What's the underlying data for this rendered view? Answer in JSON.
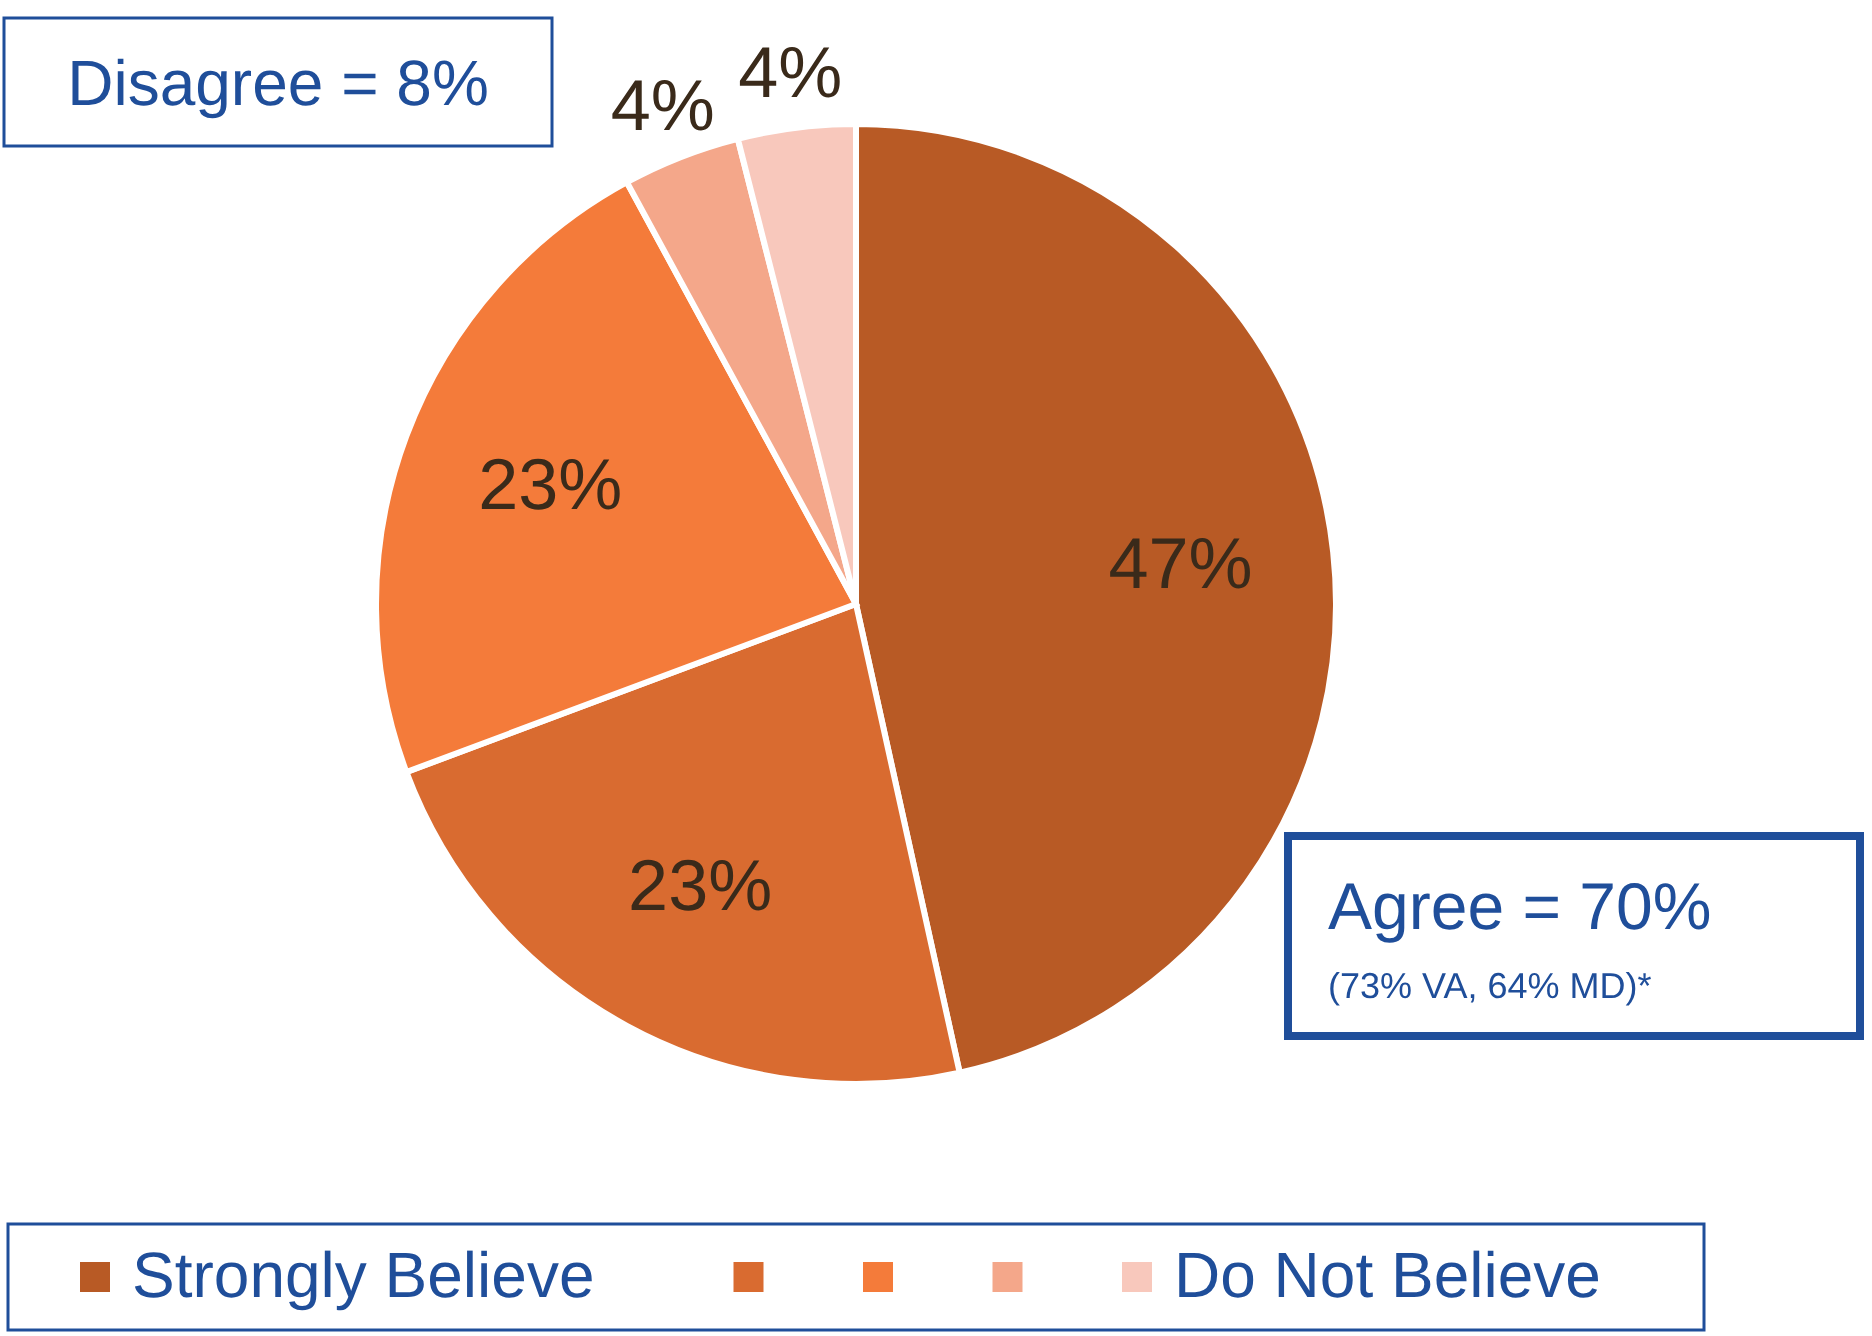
{
  "chart_data": {
    "type": "pie",
    "categories": [
      "Strongly Believe",
      null,
      null,
      null,
      "Do Not Believe"
    ],
    "values": [
      47,
      23,
      23,
      4,
      4
    ],
    "colors": [
      "#b85a25",
      "#d96b30",
      "#f47b3a",
      "#f4a78a",
      "#f8c8bc"
    ],
    "value_labels": [
      "47%",
      "23%",
      "23%",
      "4%",
      "4%"
    ],
    "legend": "bottom",
    "annotations": [
      "Disagree = 8%",
      "Agree = 70%",
      "(73% VA, 64% MD)*"
    ]
  }
}
